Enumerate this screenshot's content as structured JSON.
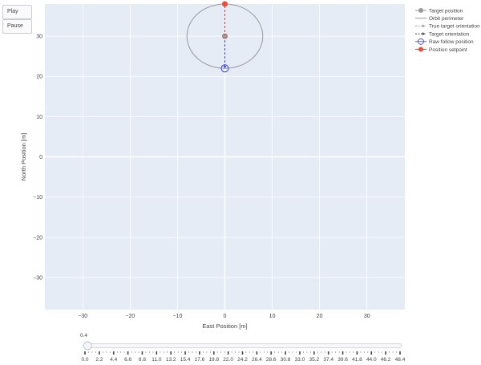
{
  "controls": {
    "play_label": "Play",
    "pause_label": "Pause"
  },
  "chart_data": {
    "type": "scatter",
    "title": "",
    "xlabel": "East Position [m]",
    "ylabel": "North Position [m]",
    "xlim": [
      -38,
      38
    ],
    "ylim": [
      -38,
      38
    ],
    "x_ticks": [
      -30,
      -20,
      -10,
      0,
      10,
      20,
      30
    ],
    "y_ticks": [
      -30,
      -20,
      -10,
      0,
      10,
      20,
      30
    ],
    "x_tick_labels": [
      "−30",
      "−20",
      "−10",
      "0",
      "10",
      "20",
      "30"
    ],
    "y_tick_labels": [
      "−30",
      "−20",
      "−10",
      "0",
      "10",
      "20",
      "30"
    ],
    "grid": true,
    "legend_position": "right",
    "legend": [
      "Target position",
      "Orbit perimeter",
      "True target orientation",
      "Target orientation",
      "Raw follow position",
      "Position setpoint"
    ],
    "target_position": {
      "x": 0,
      "y": 30
    },
    "orbit": {
      "center_x": 0,
      "center_y": 30,
      "radius_x": 8,
      "radius_y": 8
    },
    "true_target_orientation": {
      "from": [
        0,
        30
      ],
      "to": [
        0,
        38
      ]
    },
    "target_orientation": {
      "from": [
        0,
        30
      ],
      "to": [
        0,
        22
      ]
    },
    "raw_follow_position": {
      "x": 0,
      "y": 22
    },
    "position_setpoint": {
      "x": 0,
      "y": 38
    },
    "colors": {
      "background": "#e5ecf6",
      "target": "#999999",
      "orbit": "#999999",
      "true_orientation": "#c0392b",
      "orientation": "#3b3fd1",
      "follow": "#3b3fd1",
      "setpoint": "#e74c3c"
    }
  },
  "slider": {
    "current_label": "0.4",
    "value": 0.4,
    "min": 0,
    "max": 48.4,
    "tick_labels": [
      "0.0",
      "2.2",
      "4.4",
      "6.6",
      "8.8",
      "11.0",
      "13.2",
      "15.4",
      "17.6",
      "19.8",
      "22.0",
      "24.2",
      "26.4",
      "28.6",
      "30.8",
      "33.0",
      "35.2",
      "37.4",
      "39.6",
      "41.8",
      "44.0",
      "46.2",
      "48.4"
    ]
  }
}
